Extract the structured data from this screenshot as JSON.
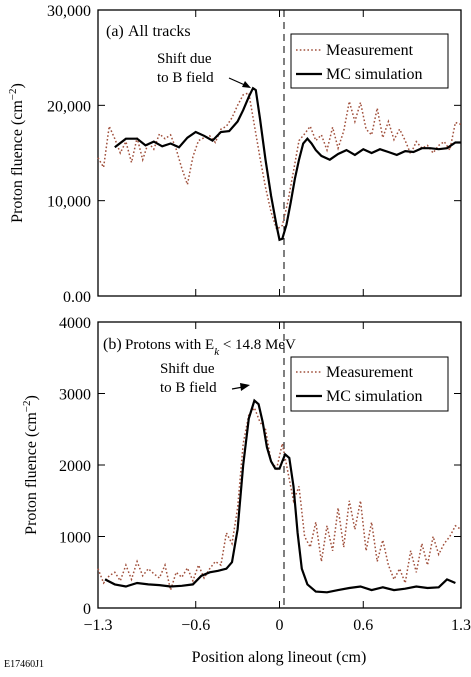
{
  "figure_id": "E17460J1",
  "xlabel": "Position along lineout (cm)",
  "colors": {
    "measurement": "#a0503c",
    "simulation": "#000000"
  },
  "chart_data": [
    {
      "type": "line",
      "panel_label": "(a)",
      "title": "All tracks",
      "annotation": [
        "Shift due",
        "to B field"
      ],
      "ylabel": "Proton fluence (cm⁻²)",
      "xlim": [
        -1.3,
        1.3
      ],
      "ylim": [
        0,
        30000
      ],
      "yticks": [
        0,
        10000,
        20000,
        30000
      ],
      "ytick_labels": [
        "0.00",
        "10,000",
        "20,000",
        "30,000"
      ],
      "legend_position": "top-right",
      "series": [
        {
          "name": "Measurement",
          "style": "dotted",
          "x": [
            -1.3,
            -1.26,
            -1.22,
            -1.18,
            -1.14,
            -1.1,
            -1.06,
            -1.02,
            -0.98,
            -0.94,
            -0.9,
            -0.86,
            -0.82,
            -0.78,
            -0.74,
            -0.7,
            -0.66,
            -0.62,
            -0.58,
            -0.54,
            -0.5,
            -0.46,
            -0.42,
            -0.38,
            -0.34,
            -0.3,
            -0.26,
            -0.22,
            -0.18,
            -0.14,
            -0.1,
            -0.06,
            -0.02,
            0.02,
            0.06,
            0.1,
            0.14,
            0.18,
            0.22,
            0.26,
            0.3,
            0.34,
            0.38,
            0.42,
            0.46,
            0.5,
            0.54,
            0.58,
            0.62,
            0.66,
            0.7,
            0.74,
            0.78,
            0.82,
            0.86,
            0.9,
            0.94,
            0.98,
            1.02,
            1.06,
            1.1,
            1.14,
            1.18,
            1.22,
            1.26,
            1.3
          ],
          "y": [
            14500,
            13500,
            17800,
            16500,
            15000,
            16200,
            14000,
            16600,
            14300,
            16100,
            15400,
            17000,
            16500,
            16900,
            15400,
            13400,
            11700,
            14600,
            16300,
            16600,
            16800,
            16100,
            17500,
            17800,
            18700,
            20000,
            21100,
            21300,
            17900,
            14500,
            11400,
            8800,
            7000,
            7400,
            9900,
            13100,
            16300,
            17000,
            17800,
            16300,
            16900,
            15300,
            17700,
            15500,
            17300,
            20400,
            18300,
            20300,
            17500,
            16900,
            19700,
            16600,
            18300,
            16400,
            17500,
            16300,
            14900,
            16200,
            15500,
            15800,
            15000,
            15800,
            16200,
            15300,
            18200,
            18000
          ]
        },
        {
          "name": "MC simulation",
          "style": "solid",
          "x": [
            -1.18,
            -1.1,
            -1.02,
            -0.96,
            -0.9,
            -0.84,
            -0.78,
            -0.72,
            -0.66,
            -0.6,
            -0.54,
            -0.48,
            -0.42,
            -0.36,
            -0.3,
            -0.26,
            -0.22,
            -0.19,
            -0.17,
            -0.14,
            -0.1,
            -0.06,
            -0.02,
            0.0,
            0.02,
            0.05,
            0.08,
            0.11,
            0.14,
            0.17,
            0.2,
            0.23,
            0.26,
            0.3,
            0.36,
            0.42,
            0.48,
            0.54,
            0.6,
            0.66,
            0.72,
            0.78,
            0.84,
            0.9,
            0.96,
            1.02,
            1.08,
            1.14,
            1.2,
            1.26,
            1.3
          ],
          "y": [
            15600,
            16500,
            16500,
            15800,
            16200,
            15700,
            16000,
            15600,
            16600,
            17200,
            16800,
            16300,
            17200,
            17300,
            18300,
            19500,
            20900,
            21800,
            21600,
            18600,
            14300,
            10500,
            7300,
            5900,
            6000,
            7500,
            9800,
            12300,
            14300,
            16000,
            16500,
            16000,
            15300,
            14700,
            14300,
            14900,
            15300,
            14800,
            15400,
            15000,
            15400,
            15100,
            14800,
            15200,
            15100,
            15500,
            15500,
            15400,
            15500,
            16100,
            16100
          ]
        }
      ]
    },
    {
      "type": "line",
      "panel_label": "(b)",
      "title": "Protons with E",
      "title_sub": "k",
      "title_rest": " < 14.8 MeV",
      "annotation": [
        "Shift due",
        "to B field"
      ],
      "ylabel": "Proton fluence (cm⁻²)",
      "xlim": [
        -1.3,
        1.3
      ],
      "ylim": [
        0,
        4000
      ],
      "yticks": [
        0,
        1000,
        2000,
        3000,
        4000
      ],
      "ytick_labels": [
        "0",
        "1000",
        "2000",
        "3000",
        "4000"
      ],
      "xticks": [
        -1.3,
        -0.6,
        0,
        0.6,
        1.3
      ],
      "xtick_labels": [
        "−1.3",
        "−0.6",
        "0",
        "0.6",
        "1.3"
      ],
      "legend_position": "top-right",
      "series": [
        {
          "name": "Measurement",
          "style": "dotted",
          "x": [
            -1.3,
            -1.26,
            -1.22,
            -1.18,
            -1.14,
            -1.1,
            -1.06,
            -1.02,
            -0.98,
            -0.94,
            -0.9,
            -0.86,
            -0.82,
            -0.78,
            -0.74,
            -0.7,
            -0.66,
            -0.62,
            -0.58,
            -0.54,
            -0.5,
            -0.46,
            -0.42,
            -0.38,
            -0.34,
            -0.3,
            -0.26,
            -0.22,
            -0.18,
            -0.14,
            -0.1,
            -0.06,
            -0.02,
            0.02,
            0.06,
            0.1,
            0.14,
            0.18,
            0.22,
            0.26,
            0.3,
            0.34,
            0.38,
            0.42,
            0.46,
            0.5,
            0.54,
            0.58,
            0.62,
            0.66,
            0.7,
            0.74,
            0.78,
            0.82,
            0.86,
            0.9,
            0.94,
            0.98,
            1.02,
            1.06,
            1.1,
            1.14,
            1.18,
            1.22,
            1.26,
            1.3
          ],
          "y": [
            550,
            350,
            450,
            500,
            380,
            600,
            400,
            650,
            450,
            550,
            480,
            420,
            600,
            250,
            500,
            430,
            560,
            380,
            600,
            420,
            550,
            650,
            600,
            1050,
            900,
            1400,
            2300,
            2700,
            2800,
            2600,
            2500,
            2050,
            1950,
            2300,
            1900,
            1500,
            1700,
            1000,
            850,
            1200,
            650,
            1150,
            800,
            1400,
            850,
            1500,
            1100,
            1500,
            800,
            1200,
            650,
            950,
            600,
            400,
            550,
            350,
            800,
            500,
            900,
            600,
            1000,
            750,
            900,
            1000,
            1150,
            1100
          ]
        },
        {
          "name": "MC simulation",
          "style": "solid",
          "x": [
            -1.25,
            -1.18,
            -1.1,
            -1.02,
            -0.94,
            -0.86,
            -0.78,
            -0.7,
            -0.62,
            -0.56,
            -0.5,
            -0.44,
            -0.38,
            -0.34,
            -0.3,
            -0.26,
            -0.22,
            -0.18,
            -0.15,
            -0.12,
            -0.09,
            -0.06,
            -0.03,
            0.0,
            0.02,
            0.04,
            0.07,
            0.1,
            0.13,
            0.16,
            0.2,
            0.26,
            0.34,
            0.42,
            0.5,
            0.58,
            0.66,
            0.74,
            0.82,
            0.9,
            0.98,
            1.06,
            1.14,
            1.2,
            1.26
          ],
          "y": [
            400,
            330,
            300,
            350,
            330,
            320,
            300,
            310,
            330,
            450,
            500,
            520,
            550,
            640,
            1100,
            2000,
            2650,
            2900,
            2850,
            2600,
            2250,
            2050,
            1950,
            1950,
            2050,
            2150,
            2100,
            1700,
            1050,
            550,
            330,
            230,
            220,
            250,
            280,
            300,
            250,
            290,
            250,
            270,
            300,
            280,
            290,
            400,
            350
          ]
        }
      ]
    }
  ]
}
